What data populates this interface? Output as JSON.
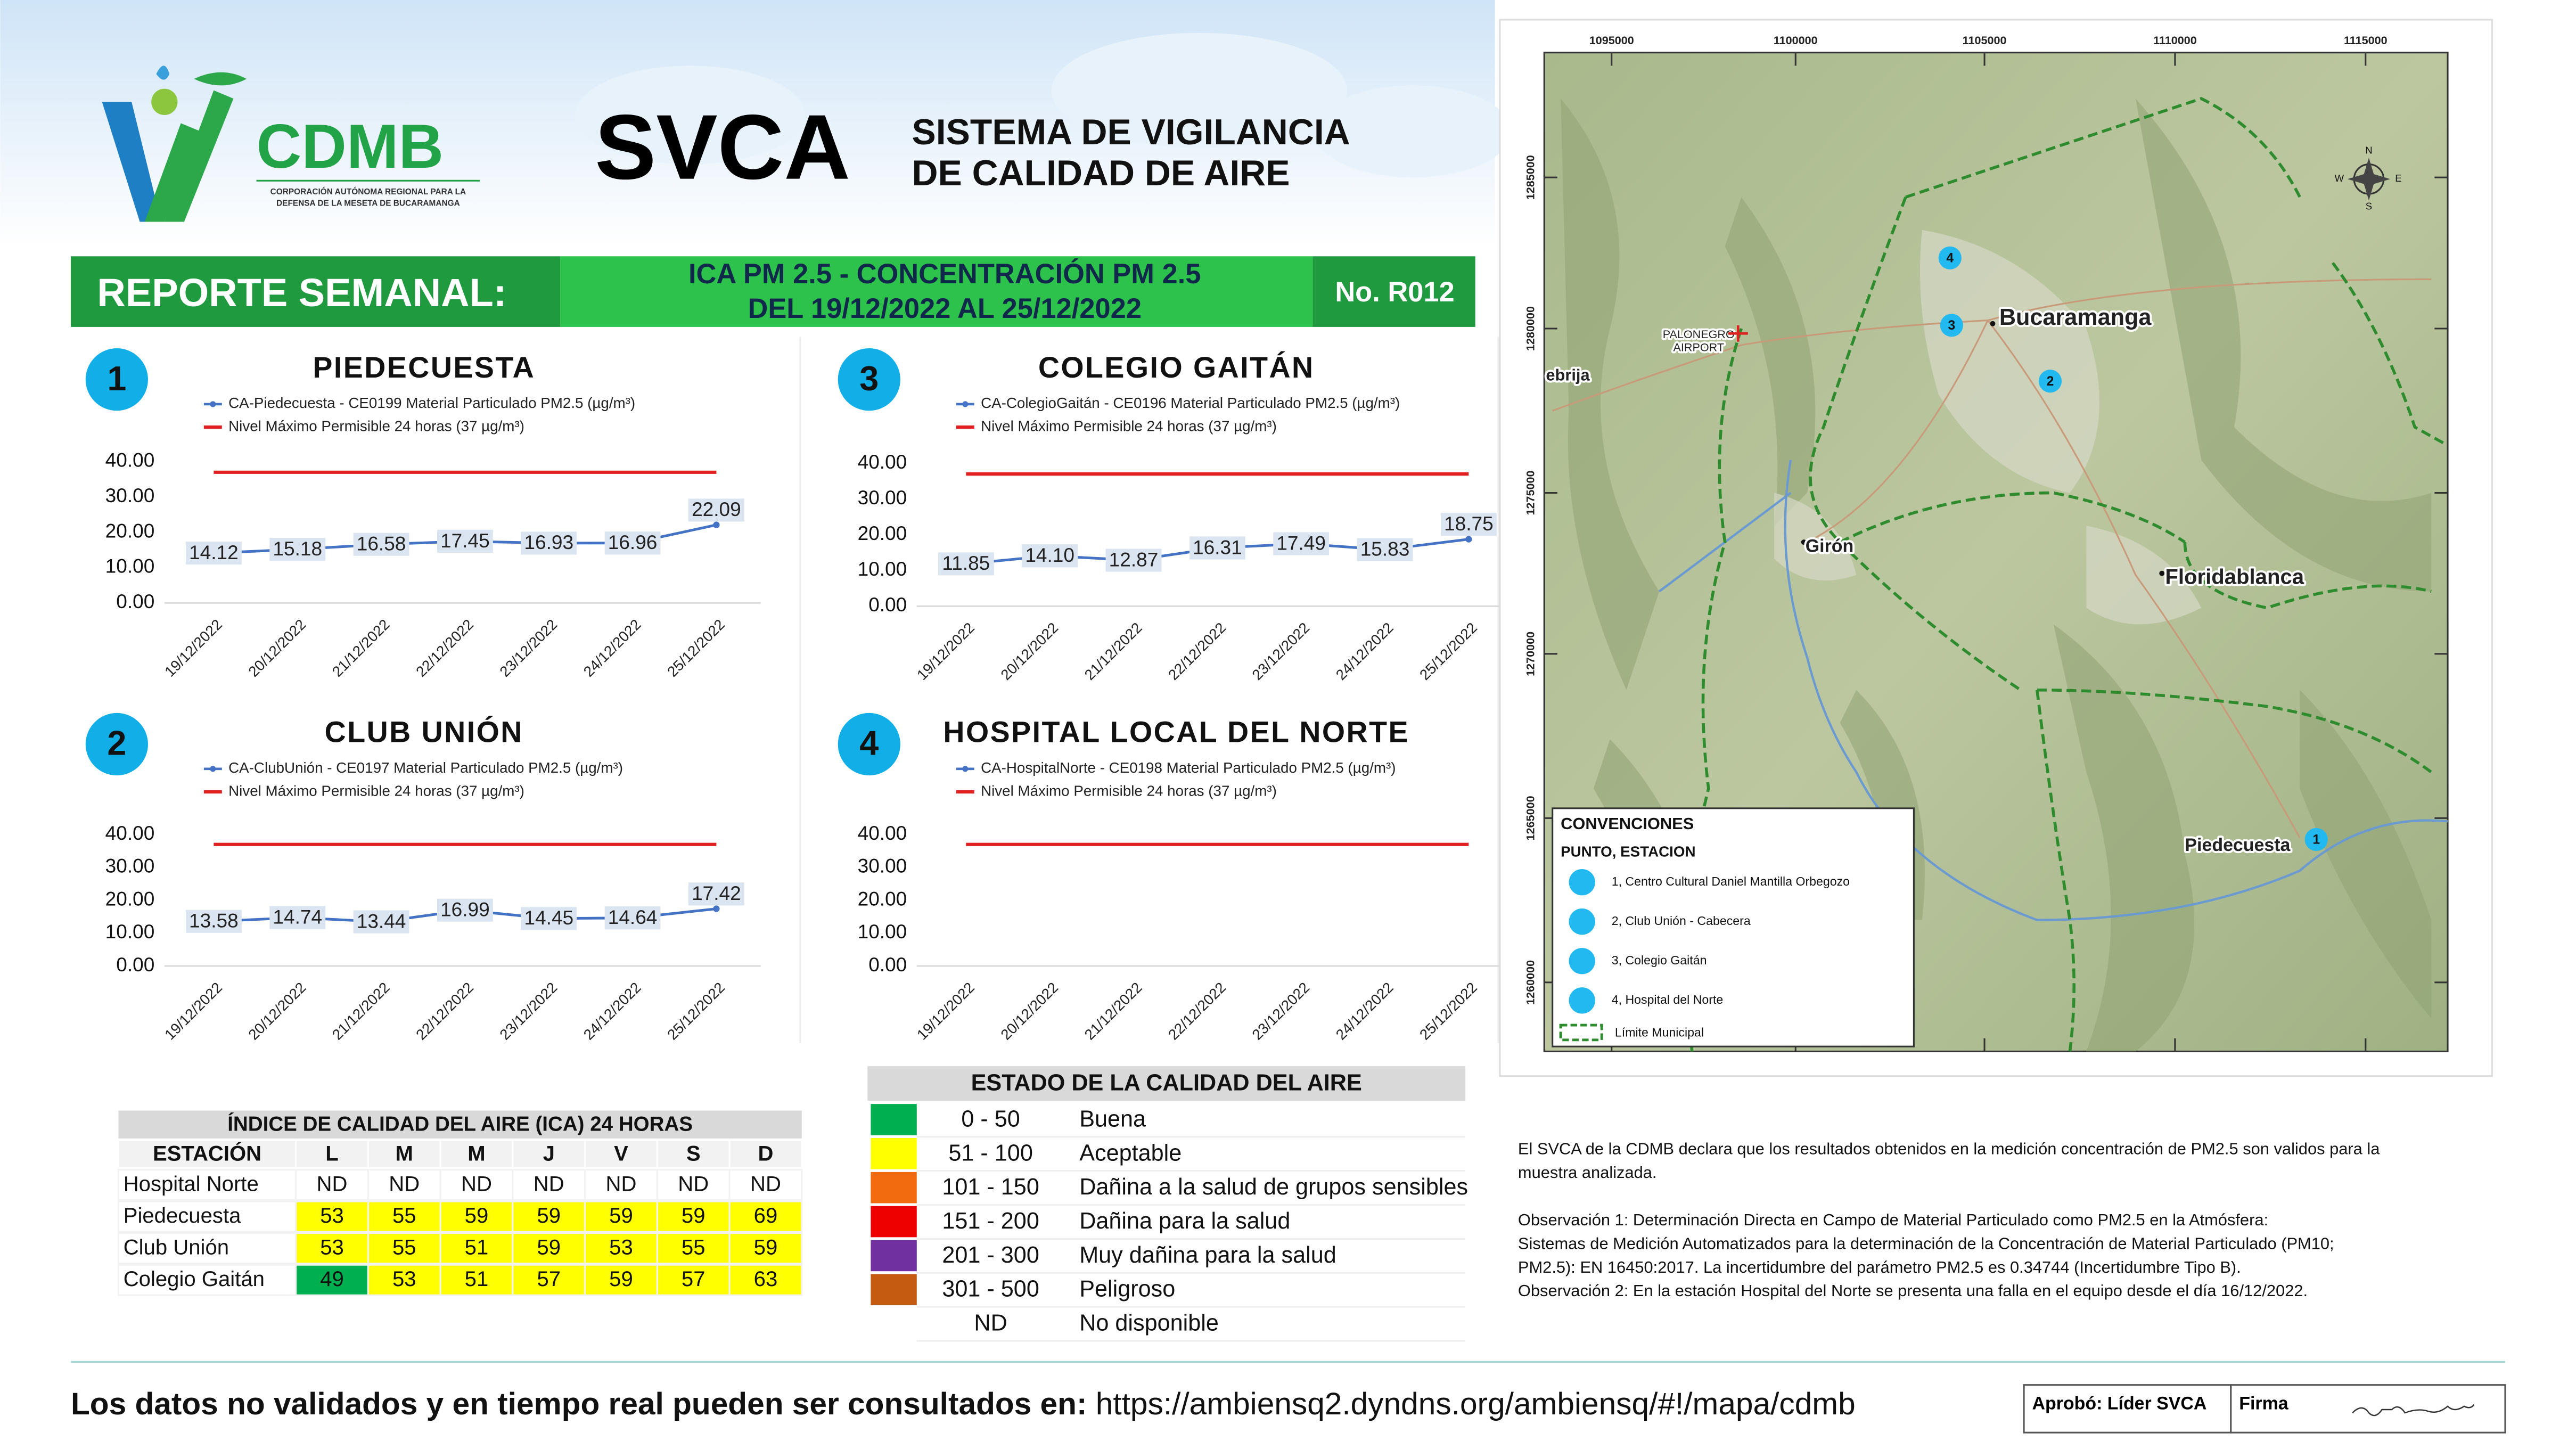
{
  "header": {
    "logo_text": "CDMB",
    "logo_subtitle_line1": "CORPORACIÓN AUTÓNOMA REGIONAL PARA LA",
    "logo_subtitle_line2": "DEFENSA DE LA MESETA DE BUCARAMANGA",
    "acronym": "SVCA",
    "title_line1": "SISTEMA DE VIGILANCIA",
    "title_line2": "DE CALIDAD DE AIRE"
  },
  "banner": {
    "label": "REPORTE SEMANAL:",
    "subject_line1": "ICA PM 2.5 - CONCENTRACIÓN PM 2.5",
    "subject_line2": "DEL 19/12/2022 AL 25/12/2022",
    "report_no": "No. R012"
  },
  "chart_data": [
    {
      "type": "line",
      "number": "1",
      "title": "PIEDECUESTA",
      "categories": [
        "19/12/2022",
        "20/12/2022",
        "21/12/2022",
        "22/12/2022",
        "23/12/2022",
        "24/12/2022",
        "25/12/2022"
      ],
      "series": [
        {
          "name": "CA-Piedecuesta - CE0199 Material Particulado PM2.5 (µg/m³)",
          "color": "#4472c4",
          "values": [
            14.12,
            15.18,
            16.58,
            17.45,
            16.93,
            16.96,
            22.09
          ],
          "value_labels": [
            "14.12",
            "15.18",
            "16.58",
            "17.45",
            "16.93",
            "16.96",
            "22.09"
          ]
        },
        {
          "name": "Nivel Máximo Permisible 24 horas (37 µg/m³)",
          "color": "#e02020",
          "values": [
            37,
            37,
            37,
            37,
            37,
            37,
            37
          ]
        }
      ],
      "ylim": [
        0,
        40
      ],
      "yticks": [
        {
          "value": 0,
          "label": "0.00"
        },
        {
          "value": 10,
          "label": "10.00"
        },
        {
          "value": 20,
          "label": "20.00"
        },
        {
          "value": 30,
          "label": "30.00"
        },
        {
          "value": 40,
          "label": "40.00"
        }
      ]
    },
    {
      "type": "line",
      "number": "2",
      "title": "CLUB UNIÓN",
      "categories": [
        "19/12/2022",
        "20/12/2022",
        "21/12/2022",
        "22/12/2022",
        "23/12/2022",
        "24/12/2022",
        "25/12/2022"
      ],
      "series": [
        {
          "name": "CA-ClubUnión - CE0197 Material Particulado PM2.5 (µg/m³)",
          "color": "#4472c4",
          "values": [
            13.58,
            14.74,
            13.44,
            16.99,
            14.45,
            14.64,
            17.42
          ],
          "value_labels": [
            "13.58",
            "14.74",
            "13.44",
            "16.99",
            "14.45",
            "14.64",
            "17.42"
          ]
        },
        {
          "name": "Nivel Máximo Permisible 24 horas (37 µg/m³)",
          "color": "#e02020",
          "values": [
            37,
            37,
            37,
            37,
            37,
            37,
            37
          ]
        }
      ],
      "ylim": [
        0,
        40
      ],
      "yticks": [
        {
          "value": 0,
          "label": "0.00"
        },
        {
          "value": 10,
          "label": "10.00"
        },
        {
          "value": 20,
          "label": "20.00"
        },
        {
          "value": 30,
          "label": "30.00"
        },
        {
          "value": 40,
          "label": "40.00"
        }
      ]
    },
    {
      "type": "line",
      "number": "3",
      "title": "COLEGIO GAITÁN",
      "categories": [
        "19/12/2022",
        "20/12/2022",
        "21/12/2022",
        "22/12/2022",
        "23/12/2022",
        "24/12/2022",
        "25/12/2022"
      ],
      "series": [
        {
          "name": "CA-ColegioGaitán - CE0196 Material Particulado PM2.5 (µg/m³)",
          "color": "#4472c4",
          "values": [
            11.85,
            14.1,
            12.87,
            16.31,
            17.49,
            15.83,
            18.75
          ],
          "value_labels": [
            "11.85",
            "14.10",
            "12.87",
            "16.31",
            "17.49",
            "15.83",
            "18.75"
          ]
        },
        {
          "name": "Nivel Máximo Permisible 24 horas (37 µg/m³)",
          "color": "#e02020",
          "values": [
            37,
            37,
            37,
            37,
            37,
            37,
            37
          ]
        }
      ],
      "ylim": [
        0,
        40
      ],
      "yticks": [
        {
          "value": 0,
          "label": "0.00"
        },
        {
          "value": 10,
          "label": "10.00"
        },
        {
          "value": 20,
          "label": "20.00"
        },
        {
          "value": 30,
          "label": "30.00"
        },
        {
          "value": 40,
          "label": "40.00"
        }
      ]
    },
    {
      "type": "line",
      "number": "4",
      "title": "HOSPITAL LOCAL DEL NORTE",
      "categories": [
        "19/12/2022",
        "20/12/2022",
        "21/12/2022",
        "22/12/2022",
        "23/12/2022",
        "24/12/2022",
        "25/12/2022"
      ],
      "series": [
        {
          "name": "CA-HospitalNorte - CE0198 Material Particulado PM2.5 (µg/m³)",
          "color": "#4472c4",
          "values": [
            null,
            null,
            null,
            null,
            null,
            null,
            null
          ]
        },
        {
          "name": "Nivel Máximo Permisible 24 horas (37 µg/m³)",
          "color": "#e02020",
          "values": [
            37,
            37,
            37,
            37,
            37,
            37,
            37
          ]
        }
      ],
      "ylim": [
        0,
        40
      ],
      "yticks": [
        {
          "value": 0,
          "label": "0.00"
        },
        {
          "value": 10,
          "label": "10.00"
        },
        {
          "value": 20,
          "label": "20.00"
        },
        {
          "value": 30,
          "label": "30.00"
        },
        {
          "value": 40,
          "label": "40.00"
        }
      ]
    }
  ],
  "ica_table": {
    "title": "ÍNDICE DE CALIDAD DEL AIRE (ICA) 24 HORAS",
    "headers": [
      "ESTACIÓN",
      "L",
      "M",
      "M",
      "J",
      "V",
      "S",
      "D"
    ],
    "rows": [
      [
        "Hospital Norte",
        "ND",
        "ND",
        "ND",
        "ND",
        "ND",
        "ND",
        "ND"
      ],
      [
        "Piedecuesta",
        53,
        55,
        59,
        59,
        59,
        59,
        69
      ],
      [
        "Club Unión",
        53,
        55,
        51,
        59,
        53,
        55,
        59
      ],
      [
        "Colegio Gaitán",
        49,
        53,
        51,
        57,
        59,
        57,
        63
      ]
    ]
  },
  "quality_scale": {
    "title": "ESTADO DE LA CALIDAD DEL AIRE",
    "rows": [
      {
        "range": "0 - 50",
        "label": "Buena",
        "color": "#00b050"
      },
      {
        "range": "51 - 100",
        "label": "Aceptable",
        "color": "#ffff00"
      },
      {
        "range": "101 - 150",
        "label": "Dañina a la salud de grupos sensibles",
        "color": "#f26b0f"
      },
      {
        "range": "151 - 200",
        "label": "Dañina para la salud",
        "color": "#ee0000"
      },
      {
        "range": "201 - 300",
        "label": "Muy dañina para la salud",
        "color": "#7030a0"
      },
      {
        "range": "301 - 500",
        "label": "Peligroso",
        "color": "#c55a11"
      },
      {
        "range": "ND",
        "label": "No disponible"
      }
    ]
  },
  "map": {
    "x_labels": [
      "1095000",
      "1100000",
      "1105000",
      "1110000",
      "1115000"
    ],
    "y_labels": [
      "1285000",
      "1280000",
      "1275000",
      "1270000",
      "1265000",
      "1260000"
    ],
    "places": [
      "Bucaramanga",
      "Girón",
      "Floridablanca",
      "Piedecuesta",
      "PALONEGRO",
      "AIRPORT",
      "ebrija"
    ],
    "stations": [
      "1",
      "2",
      "3",
      "4"
    ],
    "compass": [
      "N",
      "S",
      "E",
      "W"
    ],
    "legend_title": "CONVENCIONES",
    "legend_subtitle": "PUNTO, ESTACION",
    "legend_items": [
      "1, Centro Cultural Daniel Mantilla Orbegozo",
      "2, Club Unión - Cabecera",
      "3, Colegio Gaitán",
      "4, Hospital del Norte"
    ],
    "legend_boundary": "Límite Municipal"
  },
  "notes": [
    [
      "El SVCA  de la CDMB declara que los resultados obtenidos en la medición concentración de PM2.5 son validos para la",
      "muestra  analizada."
    ],
    [
      "Observación 1: Determinación Directa en Campo de Material Particulado como PM2.5 en la Atmósfera:",
      "Sistemas de Medición Automatizados para la  determinación de la Concentración de Material Particulado (PM10;",
      "PM2.5): EN 16450:2017. La incertidumbre del parámetro PM2.5 es 0.34744 (Incertidumbre Tipo B).",
      "Observación 2: En la estación Hospital del Norte se presenta una falla en el equipo  desde el día 16/12/2022."
    ]
  ],
  "footer": {
    "text": "Los datos no validados y en tiempo real pueden ser consultados en:",
    "url": "https://ambiensq2.dyndns.org/ambiensq/#!/mapa/cdmb",
    "approval": "Aprobó: Líder SVCA",
    "signature_label": "Firma"
  }
}
